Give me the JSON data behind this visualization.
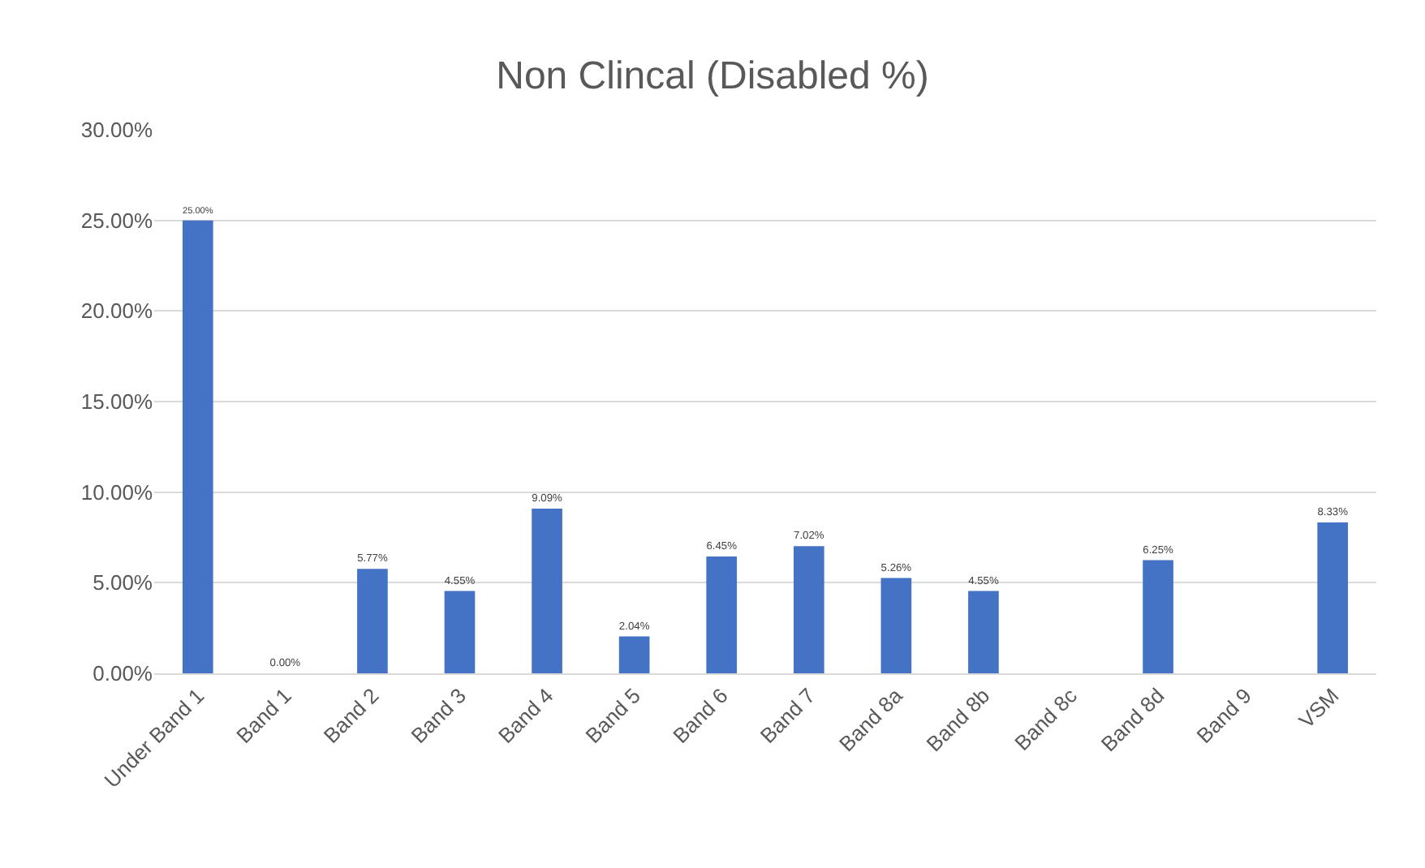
{
  "chart_data": {
    "type": "bar",
    "title": "Non Clincal (Disabled %)",
    "categories": [
      "Under Band 1",
      "Band 1",
      "Band 2",
      "Band 3",
      "Band 4",
      "Band 5",
      "Band 6",
      "Band 7",
      "Band 8a",
      "Band 8b",
      "Band 8c",
      "Band 8d",
      "Band 9",
      "VSM"
    ],
    "values": [
      25.0,
      0.0,
      5.77,
      4.55,
      9.09,
      2.04,
      6.45,
      7.02,
      5.26,
      4.55,
      null,
      6.25,
      null,
      8.33
    ],
    "value_labels": [
      "25.00%",
      "0.00%",
      "5.77%",
      "4.55%",
      "9.09%",
      "2.04%",
      "6.45%",
      "7.02%",
      "5.26%",
      "4.55%",
      null,
      "6.25%",
      null,
      "8.33%"
    ],
    "color": "#4472c4",
    "ylim": [
      0,
      30
    ],
    "yticks": [
      {
        "value": 0,
        "label": "0.00%"
      },
      {
        "value": 5,
        "label": "5.00%"
      },
      {
        "value": 10,
        "label": "10.00%"
      },
      {
        "value": 15,
        "label": "15.00%"
      },
      {
        "value": 20,
        "label": "20.00%"
      },
      {
        "value": 25,
        "label": "25.00%"
      },
      {
        "value": 30,
        "label": "30.00%"
      }
    ],
    "grid": "y"
  }
}
